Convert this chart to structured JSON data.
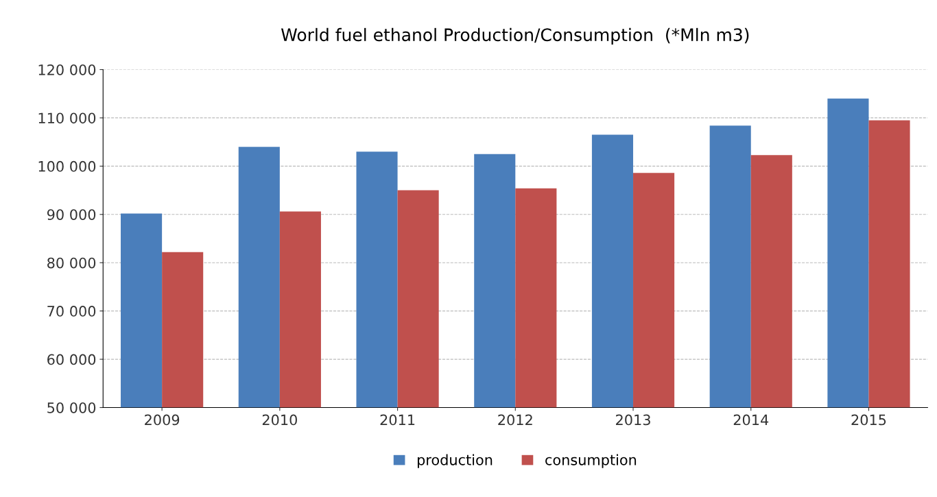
{
  "chart_data": {
    "type": "bar",
    "title": "World fuel ethanol Production/Consumption  (*Mln m3)",
    "categories": [
      "2009",
      "2010",
      "2011",
      "2012",
      "2013",
      "2014",
      "2015"
    ],
    "series": [
      {
        "name": "production",
        "color": "#4a7ebb",
        "values": [
          90200,
          104000,
          103000,
          102500,
          106500,
          108400,
          114000
        ]
      },
      {
        "name": "consumption",
        "color": "#c0504d",
        "values": [
          82200,
          90600,
          95000,
          95400,
          98600,
          102300,
          109500
        ]
      }
    ],
    "ylim": [
      50000,
      120000
    ],
    "yticks": [
      {
        "value": 50000,
        "label": "50 000"
      },
      {
        "value": 60000,
        "label": "60 000"
      },
      {
        "value": 70000,
        "label": "70 000"
      },
      {
        "value": 80000,
        "label": "80 000"
      },
      {
        "value": 90000,
        "label": "90 000"
      },
      {
        "value": 100000,
        "label": "100 000"
      },
      {
        "value": 110000,
        "label": "110 000"
      },
      {
        "value": 120000,
        "label": "120 000"
      }
    ],
    "grid": "y",
    "legend": "bottom"
  }
}
